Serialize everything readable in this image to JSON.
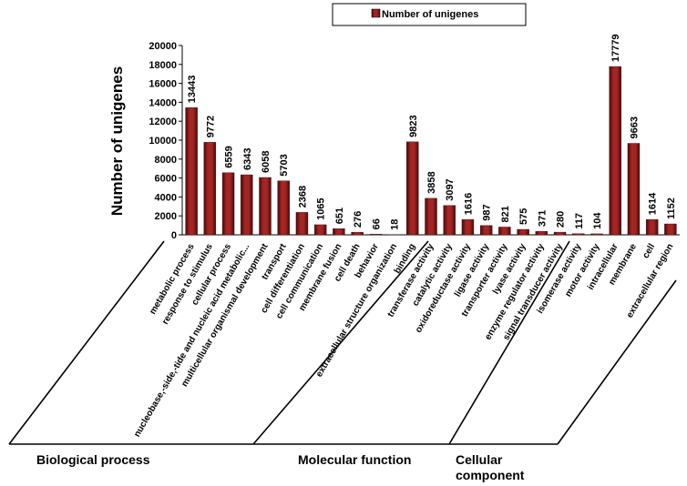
{
  "chart_data": {
    "type": "bar",
    "ylabel": "Number of unigenes",
    "ylim": [
      0,
      20000
    ],
    "yticks": [
      0,
      2000,
      4000,
      6000,
      8000,
      10000,
      12000,
      14000,
      16000,
      18000,
      20000
    ],
    "legend": {
      "label": "Number of unigenes",
      "placement": "top-center",
      "color": "#8b1c1c"
    },
    "series": [
      {
        "name": "Number of unigenes",
        "values": [
          13443,
          9772,
          6559,
          6343,
          6058,
          5703,
          2368,
          1065,
          651,
          276,
          66,
          18,
          9823,
          3858,
          3097,
          1616,
          987,
          821,
          575,
          371,
          280,
          117,
          104,
          17779,
          9663,
          1614,
          1152
        ]
      }
    ],
    "categories": [
      "metabolic process",
      "response to stimulus",
      "cellular process",
      "nucleobase,-side,-tide and nucleic acid metabolic...",
      "multicellular organismal development",
      "transport",
      "cell differentiation",
      "cell communication",
      "membrane fusion",
      "cell death",
      "behavior",
      "extracellular structure organization",
      "binding",
      "transferase activity",
      "catalytic activity",
      "oxidoreductase activity",
      "ligase activity",
      "transporter activity",
      "lyase activity",
      "enzyme regulator activity",
      "signal transducer activity",
      "isomerase activity",
      "motor activity",
      "intracellular",
      "membrane",
      "cell",
      "extracellular region"
    ],
    "groups": [
      {
        "label": "Biological process",
        "count": 12
      },
      {
        "label": "Molecular function",
        "count": 11
      },
      {
        "label": "Cellular component",
        "lines": [
          "Cellular",
          "component"
        ],
        "count": 4
      }
    ],
    "bar_color": "#8b1c1c"
  }
}
